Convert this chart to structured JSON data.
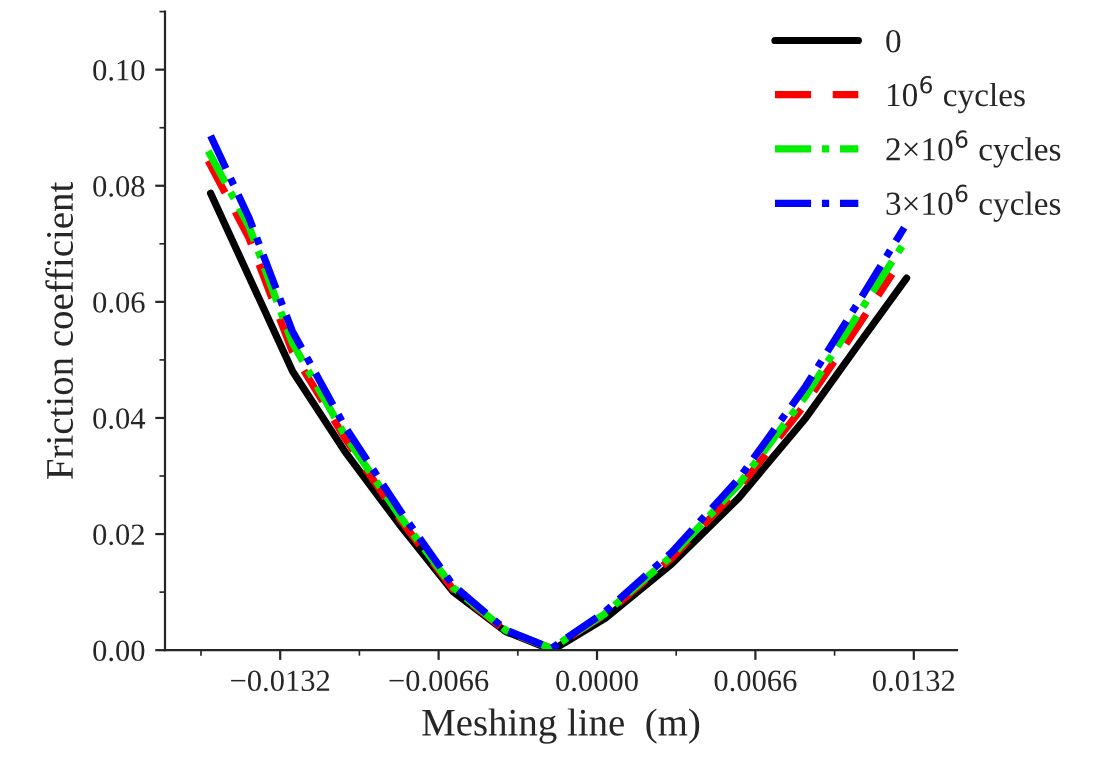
{
  "chart_data": {
    "type": "line",
    "xlabel": "Meshing line  (m)",
    "ylabel": "Friction coefficient",
    "xlim": [
      -0.018,
      0.015
    ],
    "ylim": [
      0,
      0.11
    ],
    "xticks": [
      {
        "value": -0.0132,
        "label": "−0.0132"
      },
      {
        "value": -0.0066,
        "label": "−0.0066"
      },
      {
        "value": 0,
        "label": "0.0000"
      },
      {
        "value": 0.0066,
        "label": "0.0066"
      },
      {
        "value": 0.0132,
        "label": "0.0132"
      }
    ],
    "yticks": [
      {
        "value": 0,
        "label": "0.00"
      },
      {
        "value": 0.02,
        "label": "0.02"
      },
      {
        "value": 0.04,
        "label": "0.04"
      },
      {
        "value": 0.06,
        "label": "0.06"
      },
      {
        "value": 0.08,
        "label": "0.08"
      },
      {
        "value": 0.1,
        "label": "0.10"
      }
    ],
    "grid": false,
    "legend": "top right",
    "series": [
      {
        "name": "0",
        "color": "#000000",
        "line_style": "solid",
        "x": [
          -0.0161,
          -0.01435,
          -0.01268,
          -0.0105,
          -0.00824,
          -0.006,
          -0.0038,
          -0.00186,
          0.00035,
          0.0031,
          0.0059,
          0.0087,
          0.0109,
          0.0129
        ],
        "values": [
          0.0787,
          0.063,
          0.048,
          0.0342,
          0.0217,
          0.0101,
          0.0032,
          0.0,
          0.0055,
          0.0148,
          0.0262,
          0.04,
          0.0527,
          0.0641
        ]
      },
      {
        "name": "10$^{6}$ cycles",
        "color": "#ff0000",
        "line_style": "dashed",
        "x": [
          -0.0162,
          -0.0145,
          -0.0127,
          -0.0105,
          -0.0082,
          -0.006,
          -0.0038,
          -0.0019,
          0.0003,
          0.0031,
          0.0059,
          0.0087,
          0.0109,
          0.0123
        ],
        "values": [
          0.0843,
          0.071,
          0.0515,
          0.0365,
          0.0225,
          0.0105,
          0.0033,
          0.0003,
          0.006,
          0.0158,
          0.0278,
          0.0425,
          0.056,
          0.0648
        ]
      },
      {
        "name": "2×10$^{6}$ cycles",
        "color": "#00ee00",
        "line_style": "dashdot",
        "x": [
          -0.0162,
          -0.0145,
          -0.0127,
          -0.0105,
          -0.0082,
          -0.006,
          -0.0038,
          -0.0019,
          0.0003,
          0.0031,
          0.0059,
          0.0087,
          0.0109,
          0.0129
        ],
        "values": [
          0.086,
          0.073,
          0.053,
          0.037,
          0.023,
          0.0108,
          0.0034,
          0.0003,
          0.0062,
          0.0162,
          0.0285,
          0.0438,
          0.058,
          0.0708
        ]
      },
      {
        "name": "3×10$^{6}$ cycles",
        "color": "#0000ff",
        "line_style": "dashdot",
        "x": [
          -0.0161,
          -0.0145,
          -0.0127,
          -0.0105,
          -0.0082,
          -0.006,
          -0.0038,
          -0.0019,
          0.0003,
          0.0031,
          0.0059,
          0.0087,
          0.0109,
          0.0128
        ],
        "values": [
          0.0886,
          0.0745,
          0.055,
          0.0385,
          0.024,
          0.0112,
          0.0035,
          0.0003,
          0.0065,
          0.0168,
          0.0295,
          0.0455,
          0.06,
          0.0728
        ]
      }
    ]
  }
}
